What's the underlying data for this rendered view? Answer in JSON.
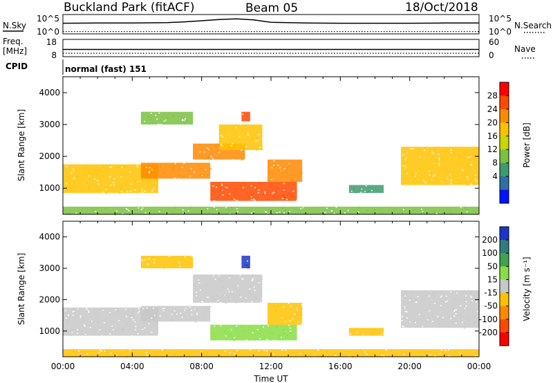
{
  "header": {
    "site": "Buckland Park (fitACF)",
    "beam": "Beam 05",
    "date": "18/Oct/2018"
  },
  "left_labels": {
    "nsky": "N.Sky",
    "freq": "Freq.",
    "freq_unit": "[MHz]",
    "cpid": "CPID"
  },
  "right_labels": {
    "nsearch": "N.Search",
    "nave": "Nave"
  },
  "cpid_text": "normal (fast) 151",
  "chart_data": [
    {
      "type": "line",
      "panel": "noise",
      "left_ticks": [
        "10^5",
        "10^0"
      ],
      "right_ticks": [
        "10^5",
        "10^0"
      ],
      "series": [
        {
          "name": "N.Sky",
          "x_hours": [
            0,
            2,
            4,
            6,
            7,
            8,
            9,
            10,
            11,
            12,
            14,
            16,
            18,
            20,
            22,
            24
          ],
          "values": [
            0.55,
            0.56,
            0.56,
            0.58,
            0.62,
            0.68,
            0.74,
            0.78,
            0.72,
            0.6,
            0.56,
            0.55,
            0.55,
            0.55,
            0.56,
            0.56
          ]
        },
        {
          "name": "N.Search",
          "x_hours": [
            0,
            24
          ],
          "values": [
            0.12,
            0.12
          ]
        }
      ]
    },
    {
      "type": "line",
      "panel": "freq-nave",
      "left_ticks": [
        "18",
        "8"
      ],
      "right_ticks": [
        "60",
        "0"
      ],
      "series": [
        {
          "name": "Freq.",
          "x_hours": [
            0,
            24
          ],
          "values": [
            0.42,
            0.42
          ]
        },
        {
          "name": "Nave",
          "x_hours": [
            0,
            24
          ],
          "values": [
            0.2,
            0.2
          ]
        }
      ]
    },
    {
      "type": "heatmap",
      "panel": "power",
      "ylabel": "Slant Range [km]",
      "xlim": [
        0,
        24
      ],
      "ylim": [
        180,
        4500
      ],
      "yticks": [
        "1000",
        "2000",
        "3000",
        "4000"
      ],
      "colorbar": {
        "label": "Power [dB]",
        "ticks": [
          "28",
          "24",
          "20",
          "16",
          "12",
          "8",
          "4"
        ],
        "colors": [
          "#ff0000",
          "#ff4a00",
          "#ff8a00",
          "#ffc200",
          "#c8d800",
          "#7ac142",
          "#3f9a6e",
          "#2f6fa6",
          "#0012ff"
        ]
      },
      "regions": [
        {
          "t": [
            0,
            5.5
          ],
          "r": [
            850,
            1750
          ],
          "level": 20
        },
        {
          "t": [
            4.5,
            8.5
          ],
          "r": [
            1300,
            1800
          ],
          "level": 26
        },
        {
          "t": [
            7.5,
            10.5
          ],
          "r": [
            1900,
            2400
          ],
          "level": 26
        },
        {
          "t": [
            9,
            11.5
          ],
          "r": [
            2200,
            3000
          ],
          "level": 22
        },
        {
          "t": [
            10.3,
            10.8
          ],
          "r": [
            3100,
            3400
          ],
          "level": 28
        },
        {
          "t": [
            4.5,
            7.5
          ],
          "r": [
            3000,
            3400
          ],
          "level": 14
        },
        {
          "t": [
            8.5,
            13.5
          ],
          "r": [
            600,
            1200
          ],
          "level": 28
        },
        {
          "t": [
            11.8,
            13.8
          ],
          "r": [
            1200,
            1900
          ],
          "level": 24
        },
        {
          "t": [
            16.5,
            18.5
          ],
          "r": [
            850,
            1100
          ],
          "level": 10
        },
        {
          "t": [
            19.5,
            24
          ],
          "r": [
            1100,
            2300
          ],
          "level": 22
        },
        {
          "t": [
            0,
            24
          ],
          "r": [
            180,
            420
          ],
          "level": 12
        }
      ]
    },
    {
      "type": "heatmap",
      "panel": "velocity",
      "xlabel": "Time UT",
      "ylabel": "Slant Range [km]",
      "xlim": [
        0,
        24
      ],
      "ylim": [
        180,
        4500
      ],
      "xticks": [
        "00:00",
        "04:00",
        "08:00",
        "12:00",
        "16:00",
        "20:00",
        "00:00"
      ],
      "yticks": [
        "1000",
        "2000",
        "3000",
        "4000"
      ],
      "colorbar": {
        "label": "Velocity [m s⁻¹]",
        "ticks": [
          "200",
          "100",
          "50",
          "15",
          "-15",
          "-50",
          "-100",
          "-200"
        ],
        "colors": [
          "#1b35c8",
          "#2e7d7e",
          "#3fa34d",
          "#88dd44",
          "#c8c8c8",
          "#ffc200",
          "#ff8a00",
          "#ff4a00",
          "#ff0000"
        ]
      },
      "regions": [
        {
          "t": [
            0,
            5.5
          ],
          "r": [
            850,
            1750
          ],
          "level": 0
        },
        {
          "t": [
            4.5,
            8.5
          ],
          "r": [
            1300,
            1800
          ],
          "level": 0
        },
        {
          "t": [
            7.5,
            11.5
          ],
          "r": [
            1900,
            2800
          ],
          "level": 0
        },
        {
          "t": [
            4.5,
            7.5
          ],
          "r": [
            3000,
            3400
          ],
          "level": -30
        },
        {
          "t": [
            10.3,
            10.8
          ],
          "r": [
            3000,
            3400
          ],
          "level": 220
        },
        {
          "t": [
            8.5,
            13.5
          ],
          "r": [
            700,
            1200
          ],
          "level": 30
        },
        {
          "t": [
            11.8,
            13.8
          ],
          "r": [
            1200,
            1900
          ],
          "level": -40
        },
        {
          "t": [
            16.5,
            18.5
          ],
          "r": [
            850,
            1100
          ],
          "level": -40
        },
        {
          "t": [
            19.5,
            24
          ],
          "r": [
            1100,
            2300
          ],
          "level": 0
        },
        {
          "t": [
            0,
            24
          ],
          "r": [
            180,
            420
          ],
          "level": -40
        }
      ]
    }
  ]
}
